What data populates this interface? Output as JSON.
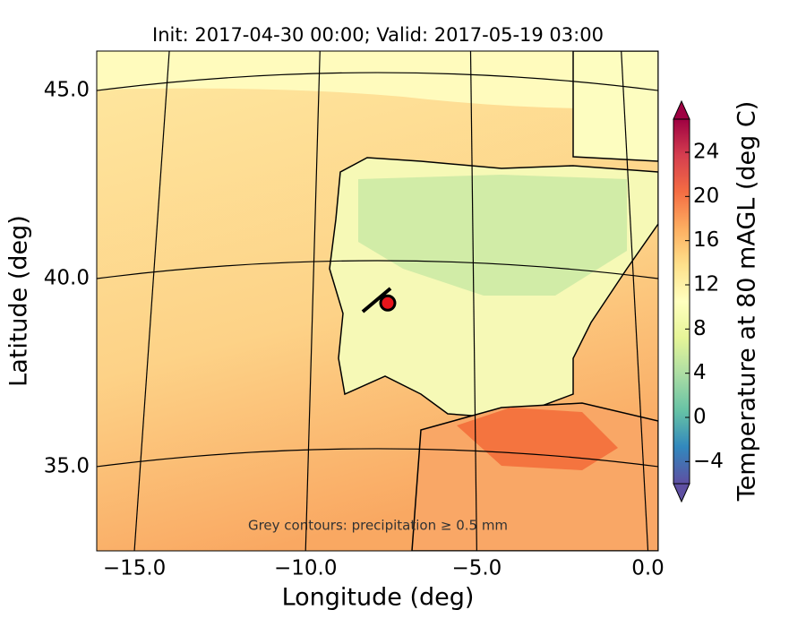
{
  "chart_data": {
    "type": "map",
    "title": "Init: 2017-04-30 00:00; Valid: 2017-05-19 03:00",
    "xlabel": "Longitude (deg)",
    "ylabel": "Latitude (deg)",
    "annotation": "Grey contours: precipitation ≥ 0.5 mm",
    "xlim": [
      -16.1,
      0.3
    ],
    "ylim": [
      32.76,
      46.05
    ],
    "xticks": [
      {
        "value": -15,
        "label": "−15.0"
      },
      {
        "value": -10,
        "label": "−10.0"
      },
      {
        "value": -5,
        "label": "−5.0"
      },
      {
        "value": 0,
        "label": "0.0"
      }
    ],
    "yticks": [
      {
        "value": 35,
        "label": "35.0"
      },
      {
        "value": 40,
        "label": "40.0"
      },
      {
        "value": 45,
        "label": "45.0"
      }
    ],
    "marker": {
      "x": -7.6,
      "y": 39.35,
      "color": "#e8151b"
    },
    "colorbar": {
      "label": "Temperature at 80 mAGL (deg C)",
      "lim": [
        -6,
        27
      ],
      "ticks": [
        {
          "value": -4,
          "label": "−4"
        },
        0,
        4,
        8,
        12,
        16,
        20,
        24
      ],
      "colormap": [
        "#5e4fa2",
        "#3288bd",
        "#66c2a5",
        "#abdda4",
        "#e6f598",
        "#ffffbf",
        "#fee08b",
        "#fdae61",
        "#f46d43",
        "#d53e4f",
        "#9e0142"
      ]
    }
  }
}
